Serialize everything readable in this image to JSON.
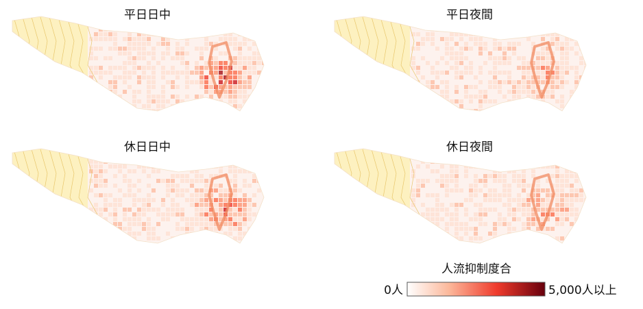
{
  "panels": [
    {
      "title": "平日日中"
    },
    {
      "title": "平日夜間"
    },
    {
      "title": "休日日中"
    },
    {
      "title": "休日夜間"
    }
  ],
  "legend": {
    "title": "人流抑制度合",
    "min_label": "0人",
    "max_label": "5,000人以上"
  }
}
